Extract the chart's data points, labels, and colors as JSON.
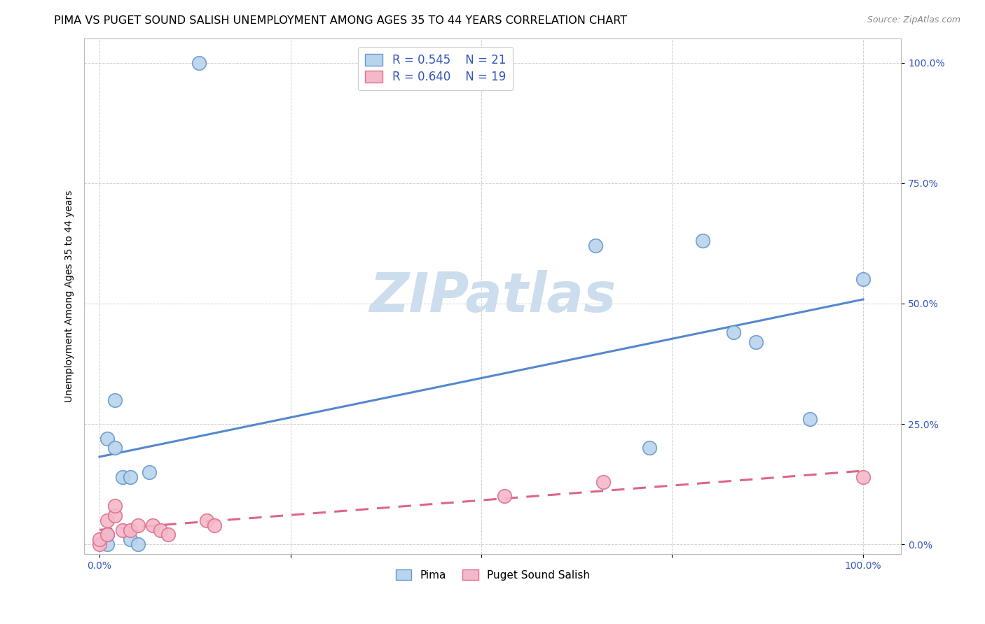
{
  "title": "PIMA VS PUGET SOUND SALISH UNEMPLOYMENT AMONG AGES 35 TO 44 YEARS CORRELATION CHART",
  "source": "Source: ZipAtlas.com",
  "ylabel": "Unemployment Among Ages 35 to 44 years",
  "xlim": [
    -0.02,
    1.05
  ],
  "ylim": [
    -0.02,
    1.05
  ],
  "xticks": [
    0.0,
    0.25,
    0.5,
    0.75,
    1.0
  ],
  "yticks": [
    0.0,
    0.25,
    0.5,
    0.75,
    1.0
  ],
  "xtick_labels": [
    "0.0%",
    "",
    "",
    "",
    "100.0%"
  ],
  "ytick_labels": [
    "0.0%",
    "25.0%",
    "50.0%",
    "75.0%",
    "100.0%"
  ],
  "pima_x": [
    0.01,
    0.01,
    0.01,
    0.02,
    0.02,
    0.03,
    0.04,
    0.04,
    0.05,
    0.065,
    0.13,
    0.65,
    0.72,
    0.79,
    0.83,
    0.86,
    0.93,
    1.0
  ],
  "pima_y": [
    0.0,
    0.02,
    0.22,
    0.3,
    0.2,
    0.14,
    0.14,
    0.01,
    0.0,
    0.15,
    1.0,
    0.62,
    0.2,
    0.63,
    0.44,
    0.42,
    0.26,
    0.55
  ],
  "pss_x": [
    0.0,
    0.0,
    0.01,
    0.01,
    0.02,
    0.02,
    0.03,
    0.04,
    0.05,
    0.07,
    0.08,
    0.09,
    0.14,
    0.15,
    0.53,
    0.66,
    1.0
  ],
  "pss_y": [
    0.0,
    0.01,
    0.02,
    0.05,
    0.06,
    0.08,
    0.03,
    0.03,
    0.04,
    0.04,
    0.03,
    0.02,
    0.05,
    0.04,
    0.1,
    0.13,
    0.14
  ],
  "pima_R": 0.545,
  "pima_N": 21,
  "pss_R": 0.64,
  "pss_N": 19,
  "pima_color": "#b8d4ed",
  "pss_color": "#f5b8c8",
  "pima_edge_color": "#6699cc",
  "pss_edge_color": "#dd7090",
  "pima_line_color": "#5588cc",
  "pss_line_color": "#dd6688",
  "legend_text_color": "#3355bb",
  "tick_color": "#3355bb",
  "title_fontsize": 11.5,
  "axis_label_fontsize": 10,
  "tick_fontsize": 10,
  "watermark": "ZIPatlas",
  "watermark_color": "#ccdded"
}
